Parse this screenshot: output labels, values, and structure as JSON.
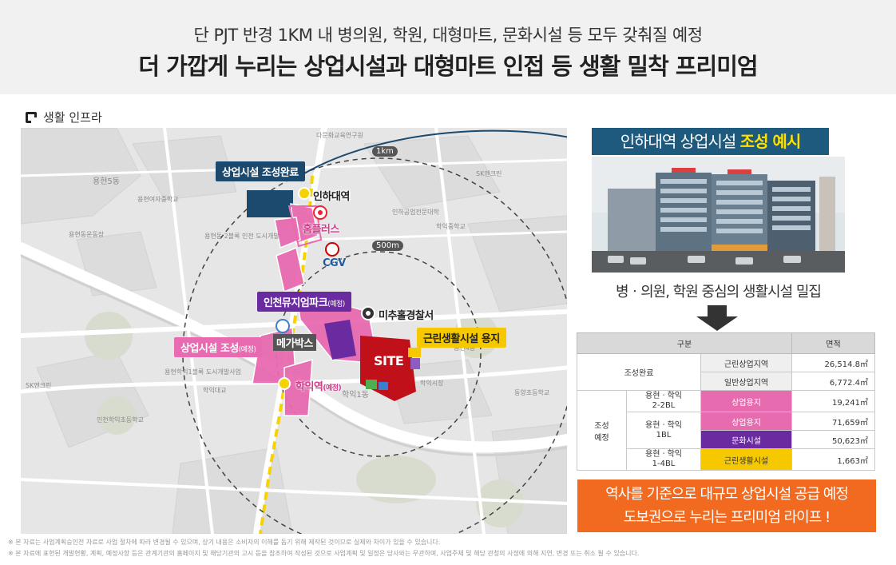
{
  "header": {
    "subtitle": "단 PJT 반경 1KM 내 병의원, 학원, 대형마트, 문화시설 등 모두 갖춰질 예정",
    "title": "더 가깝게 누리는 상업시설과 대형마트 인접 등 생활 밀착 프리미엄"
  },
  "section": {
    "label": "생활 인프라"
  },
  "map": {
    "labels": {
      "commercial_done": "상업시설 조성완료",
      "inha_station": "인하대역",
      "homeplus": "홈플러스",
      "cgv": "CGV",
      "museum_park": "인천뮤지엄파크",
      "museum_park_note": "(예정)",
      "michuhol_police": "미추홀경찰서",
      "neighborhood": "근린생활시설 용지",
      "commercial_plan": "상업시설 조성",
      "commercial_plan_note": "(예정)",
      "megabox": "메가박스",
      "site": "SITE",
      "hagik_station": "학익역",
      "hagik_station_note": "(예정)",
      "dist_1km": "1km",
      "dist_500m": "500m",
      "cgv_logo": "CGV"
    },
    "small_texts": {
      "t1": "용현5동",
      "t2": "학익1동",
      "t3": "다문화교육연구원",
      "t4": "학익1동",
      "t5": "인천학익초등학교",
      "t6": "용현여자중학교",
      "t7": "용현동운동장",
      "t8": "SK엔크린",
      "t9": "학익대교",
      "t10": "용현4동",
      "t11": "인하공업전문대학",
      "t12": "학익중학교",
      "t13": "동양초등학교",
      "t14": "용현동 2블록 인천 도시개발",
      "t15": "용현학익1블록 도시개발사업",
      "t16": "학익동",
      "t17": "학익시장"
    }
  },
  "right": {
    "title_prefix": "인하대역 상업시설 ",
    "title_highlight": "조성 예시",
    "caption": "병ㆍ의원, 학원 중심의 생활시설 밀집"
  },
  "table": {
    "headers": [
      "구분",
      "면적"
    ],
    "group1": "조성완료",
    "rows_done": [
      {
        "name": "근린상업지역",
        "area": "26,514.8㎡"
      },
      {
        "name": "일반상업지역",
        "area": "6,772.4㎡"
      }
    ],
    "group2": "조성\n예정",
    "rows_plan": [
      {
        "zone": "용현ㆍ학익\n2-2BL",
        "use": "상업용지",
        "area": "19,241㎡"
      },
      {
        "zone": "용현ㆍ학익\n1BL",
        "use": "상업용지",
        "area": "71,659㎡"
      },
      {
        "zone": "",
        "use": "문화시설",
        "area": "50,623㎡"
      },
      {
        "zone": "용현ㆍ학익\n1-4BL",
        "use": "근린생활시설",
        "area": "1,663㎡"
      }
    ]
  },
  "promo": {
    "line1": "역사를 기준으로 대규모 상업시설 공급 예정",
    "line2": "도보권으로 누리는 프리미엄 라이프 !"
  },
  "notes": {
    "line1": "※ 본 자료는 사업계획승인전 자료로 사업 절차에 따라 변경될 수 있으며, 상기 내용은 소비자의 이해를 돕기 위해 제작된 것이므로 실제와 차이가 있을 수 있습니다.",
    "line2": "※ 본 자료에 표현된 개발현황, 계획, 예정사항 등은 관계기관의 홈페이지 및 해당기관의 고시 등을 참조하여 작성된 것으로 사업계획 및 일정은 당사와는 무관하며, 사업주체 및 해당 관청의 사정에 의해 지연, 변경 또는 취소 될 수 있습니다."
  },
  "colors": {
    "navy": "#1c4a6e",
    "pink": "#e86ab0",
    "purple": "#6a2aa0",
    "yellow": "#f5c800",
    "site_red": "#c0101a",
    "orange": "#f26a1f",
    "title_bar": "#1e5a7d"
  }
}
